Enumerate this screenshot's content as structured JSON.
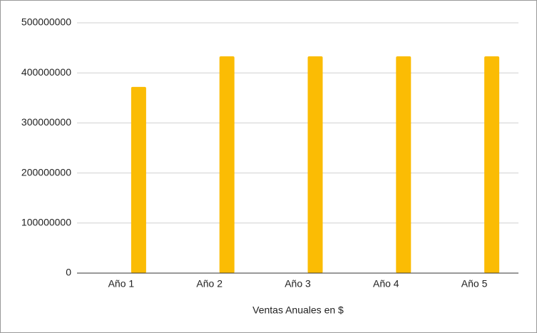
{
  "chart_data": {
    "type": "bar",
    "x_label": "Ventas Anuales en $",
    "categories": [
      "Año 1",
      "Año 2",
      "Año 3",
      "Año 4",
      "Año 5"
    ],
    "values": [
      372000000,
      433000000,
      433000000,
      433000000,
      433000000
    ],
    "color": "#fbbc04",
    "ylim": [
      0,
      500000000
    ],
    "yticks": [
      0,
      100000000,
      200000000,
      300000000,
      400000000,
      500000000
    ],
    "grid": true
  }
}
